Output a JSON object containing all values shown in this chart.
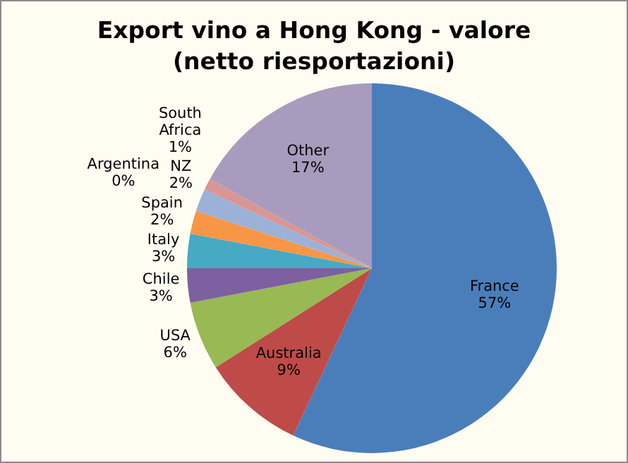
{
  "chart_data": {
    "type": "pie",
    "title": "Export vino a Hong Kong - valore (netto riesportazioni)",
    "categories": [
      "France",
      "Australia",
      "USA",
      "Chile",
      "Italy",
      "Spain",
      "NZ",
      "South Africa",
      "Argentina",
      "Other"
    ],
    "values": [
      57,
      9,
      6,
      3,
      3,
      2,
      2,
      1,
      0,
      17
    ],
    "value_labels": [
      "57%",
      "9%",
      "6%",
      "3%",
      "3%",
      "2%",
      "2%",
      "1%",
      "0%",
      "17%"
    ],
    "colors": [
      "#4a7ebb",
      "#be4b48",
      "#98b954",
      "#7d60a0",
      "#46aac5",
      "#f79646",
      "#9bb1d8",
      "#d99694",
      "#c3d69b",
      "#a99bbd"
    ],
    "legend": false
  }
}
